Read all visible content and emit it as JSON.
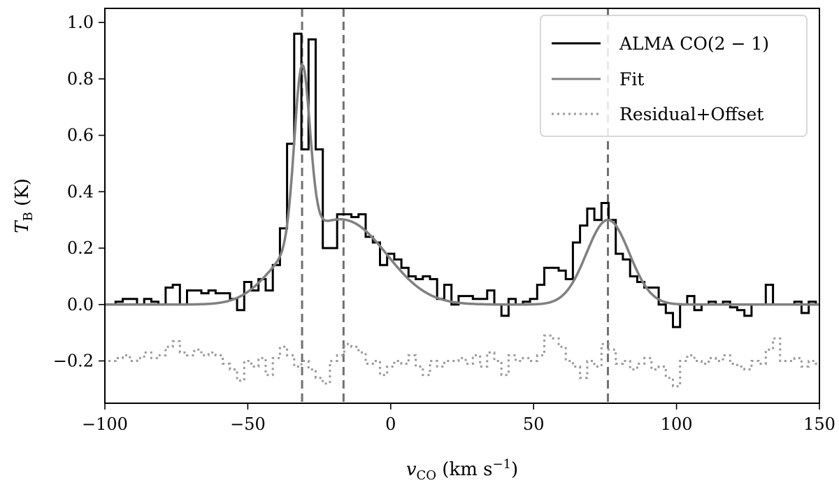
{
  "chart_data": {
    "type": "line",
    "title": "",
    "xlabel": {
      "main": "v",
      "sub": "CO",
      "unit_pre": " (km s",
      "unit_sup": "−1",
      "unit_post": ")"
    },
    "ylabel": {
      "main": "T",
      "sub": "B",
      "unit": " (K)"
    },
    "xlim": [
      -100,
      150
    ],
    "ylim": [
      -0.35,
      1.05
    ],
    "x_ticks": [
      -100,
      -50,
      0,
      50,
      100,
      150
    ],
    "x_tick_labels": [
      "−100",
      "−50",
      "0",
      "50",
      "100",
      "150"
    ],
    "y_ticks": [
      -0.2,
      0.0,
      0.2,
      0.4,
      0.6,
      0.8,
      1.0
    ],
    "y_tick_labels": [
      "−0.2",
      "0.0",
      "0.2",
      "0.4",
      "0.6",
      "0.8",
      "1.0"
    ],
    "grid": false,
    "legend_position": "top-right",
    "colors": {
      "data": "#000000",
      "fit": "#808080",
      "residual": "#999999",
      "vline": "#707070"
    },
    "vertical_lines": [
      -31,
      -16.5,
      76
    ],
    "series": [
      {
        "name": "ALMA CO(2 − 1)",
        "style": "steps-mid",
        "x": [
          -97.5,
          -95,
          -92.5,
          -90,
          -87.5,
          -85,
          -82.5,
          -80,
          -77.5,
          -75,
          -72.5,
          -70,
          -67.5,
          -65,
          -62.5,
          -60,
          -57.5,
          -55,
          -52.5,
          -50,
          -47.5,
          -45,
          -42.5,
          -40,
          -37.5,
          -35,
          -32.5,
          -30,
          -27.5,
          -25,
          -22.5,
          -20,
          -17.5,
          -15,
          -12.5,
          -10,
          -7.5,
          -5,
          -2.5,
          0,
          2.5,
          5,
          7.5,
          10,
          12.5,
          15,
          17.5,
          20,
          22.5,
          25,
          27.5,
          30,
          32.5,
          35,
          37.5,
          40,
          42.5,
          45,
          47.5,
          50,
          52.5,
          55,
          57.5,
          60,
          62.5,
          65,
          67.5,
          70,
          72.5,
          75,
          77.5,
          80,
          82.5,
          85,
          87.5,
          90,
          92.5,
          95,
          97.5,
          100,
          102.5,
          105,
          107.5,
          110,
          112.5,
          115,
          117.5,
          120,
          122.5,
          125,
          127.5,
          130,
          132.5,
          135,
          137.5,
          140,
          142.5,
          145,
          147.5,
          150
        ],
        "y": [
          0.0,
          0.01,
          0.02,
          0.02,
          0.0,
          0.02,
          0.01,
          0.0,
          0.06,
          0.07,
          0.0,
          0.05,
          0.05,
          0.04,
          0.05,
          0.04,
          0.04,
          0.02,
          -0.02,
          0.08,
          0.05,
          0.09,
          0.05,
          0.14,
          0.27,
          0.57,
          0.96,
          0.55,
          0.94,
          0.55,
          0.2,
          0.2,
          0.32,
          0.32,
          0.31,
          0.32,
          0.24,
          0.22,
          0.14,
          0.18,
          0.16,
          0.13,
          0.1,
          0.09,
          0.1,
          0.09,
          0.02,
          0.07,
          0.0,
          0.03,
          0.03,
          0.02,
          0.02,
          0.05,
          0.0,
          -0.04,
          0.02,
          0.0,
          0.01,
          0.02,
          0.07,
          0.13,
          0.13,
          0.12,
          0.09,
          0.22,
          0.28,
          0.34,
          0.3,
          0.36,
          0.3,
          0.18,
          0.16,
          0.1,
          0.08,
          0.06,
          0.06,
          0.0,
          -0.03,
          -0.08,
          0.0,
          0.03,
          -0.02,
          0.0,
          0.01,
          0.0,
          0.01,
          -0.01,
          -0.02,
          -0.04,
          0.0,
          0.0,
          0.07,
          0.0,
          0.0,
          0.0,
          0.01,
          -0.03,
          0.01,
          0.0
        ]
      },
      {
        "name": "Fit",
        "style": "line",
        "components": [
          {
            "type": "gaussian",
            "amplitude": 0.61,
            "center": -31.0,
            "sigma": 2.7
          },
          {
            "type": "gaussian",
            "amplitude": 0.285,
            "center": -15.0,
            "sigma": 14.0
          },
          {
            "type": "gaussian",
            "amplitude": 0.1,
            "center": -35.0,
            "sigma": 10.0
          },
          {
            "type": "gaussian",
            "amplitude": 0.3,
            "center": 76.0,
            "sigma": 7.5
          }
        ]
      },
      {
        "name": "Residual+Offset",
        "style": "dotted",
        "x": [
          -97.5,
          -95,
          -92.5,
          -90,
          -87.5,
          -85,
          -82.5,
          -80,
          -77.5,
          -75,
          -72.5,
          -70,
          -67.5,
          -65,
          -62.5,
          -60,
          -57.5,
          -55,
          -52.5,
          -50,
          -47.5,
          -45,
          -42.5,
          -40,
          -37.5,
          -35,
          -32.5,
          -30,
          -27.5,
          -25,
          -22.5,
          -20,
          -17.5,
          -15,
          -12.5,
          -10,
          -7.5,
          -5,
          -2.5,
          0,
          2.5,
          5,
          7.5,
          10,
          12.5,
          15,
          17.5,
          20,
          22.5,
          25,
          27.5,
          30,
          32.5,
          35,
          37.5,
          40,
          42.5,
          45,
          47.5,
          50,
          52.5,
          55,
          57.5,
          60,
          62.5,
          65,
          67.5,
          70,
          72.5,
          75,
          77.5,
          80,
          82.5,
          85,
          87.5,
          90,
          92.5,
          95,
          97.5,
          100,
          102.5,
          105,
          107.5,
          110,
          112.5,
          115,
          117.5,
          120,
          122.5,
          125,
          127.5,
          130,
          132.5,
          135,
          137.5,
          140,
          142.5,
          145,
          147.5,
          150
        ],
        "y": [
          -0.2,
          -0.19,
          -0.18,
          -0.2,
          -0.19,
          -0.17,
          -0.19,
          -0.18,
          -0.15,
          -0.13,
          -0.17,
          -0.18,
          -0.16,
          -0.18,
          -0.17,
          -0.18,
          -0.21,
          -0.23,
          -0.27,
          -0.2,
          -0.22,
          -0.19,
          -0.25,
          -0.19,
          -0.15,
          -0.18,
          -0.22,
          -0.2,
          -0.23,
          -0.26,
          -0.28,
          -0.2,
          -0.18,
          -0.14,
          -0.15,
          -0.17,
          -0.21,
          -0.2,
          -0.25,
          -0.22,
          -0.2,
          -0.21,
          -0.18,
          -0.22,
          -0.25,
          -0.2,
          -0.22,
          -0.2,
          -0.2,
          -0.19,
          -0.21,
          -0.18,
          -0.22,
          -0.17,
          -0.2,
          -0.25,
          -0.18,
          -0.2,
          -0.19,
          -0.2,
          -0.18,
          -0.11,
          -0.12,
          -0.15,
          -0.2,
          -0.22,
          -0.26,
          -0.2,
          -0.22,
          -0.14,
          -0.16,
          -0.21,
          -0.2,
          -0.23,
          -0.21,
          -0.19,
          -0.23,
          -0.22,
          -0.26,
          -0.29,
          -0.2,
          -0.18,
          -0.2,
          -0.21,
          -0.19,
          -0.2,
          -0.18,
          -0.21,
          -0.22,
          -0.23,
          -0.2,
          -0.21,
          -0.16,
          -0.12,
          -0.2,
          -0.2,
          -0.19,
          -0.22,
          -0.2,
          -0.21
        ]
      }
    ]
  }
}
